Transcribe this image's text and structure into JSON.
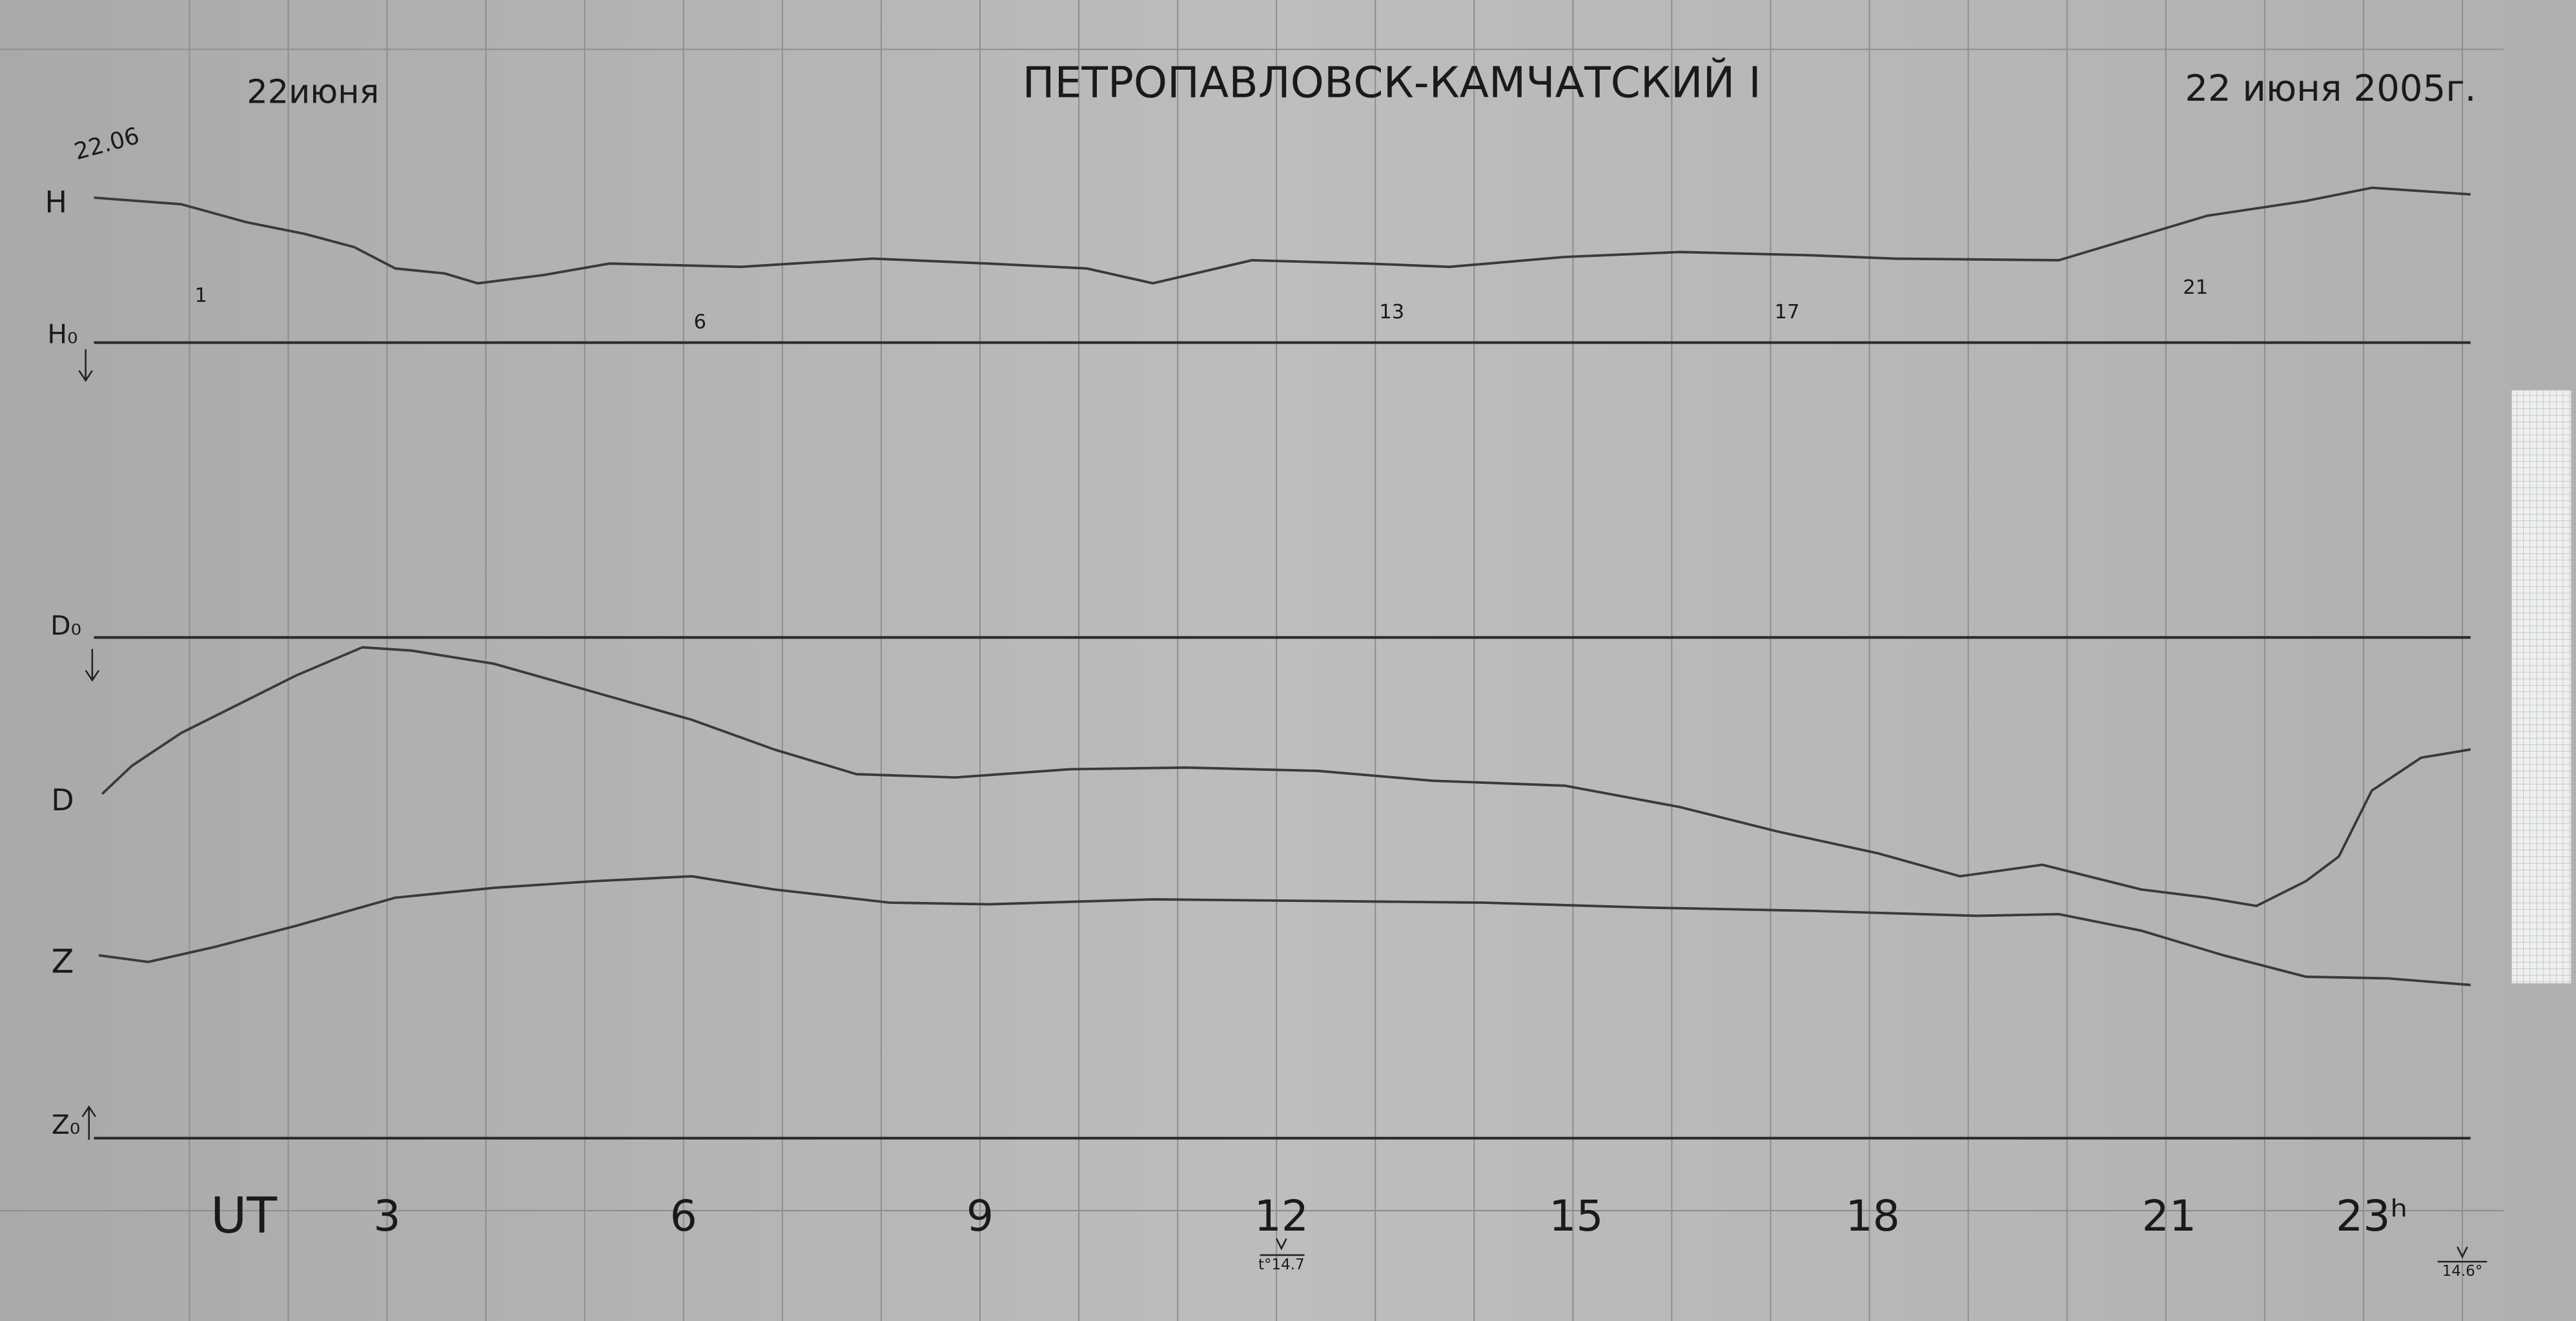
{
  "header": {
    "left": "22июня",
    "title": "ПЕТРОПАВЛОВСК-КАМЧАТСКИЙ I",
    "right": "22 июня 2005г."
  },
  "note": "22.06",
  "channels": [
    "H",
    "H₀",
    "D₀",
    "D",
    "Z",
    "Z₀"
  ],
  "hour_marks": [
    "1",
    "6",
    "13",
    "17",
    "21"
  ],
  "time_axis": {
    "unit": "UT",
    "labels": [
      "3",
      "6",
      "9",
      "12",
      "15",
      "18",
      "21",
      "23ʰ"
    ]
  },
  "temperatures": [
    "t°14.7",
    "14.6°"
  ]
}
